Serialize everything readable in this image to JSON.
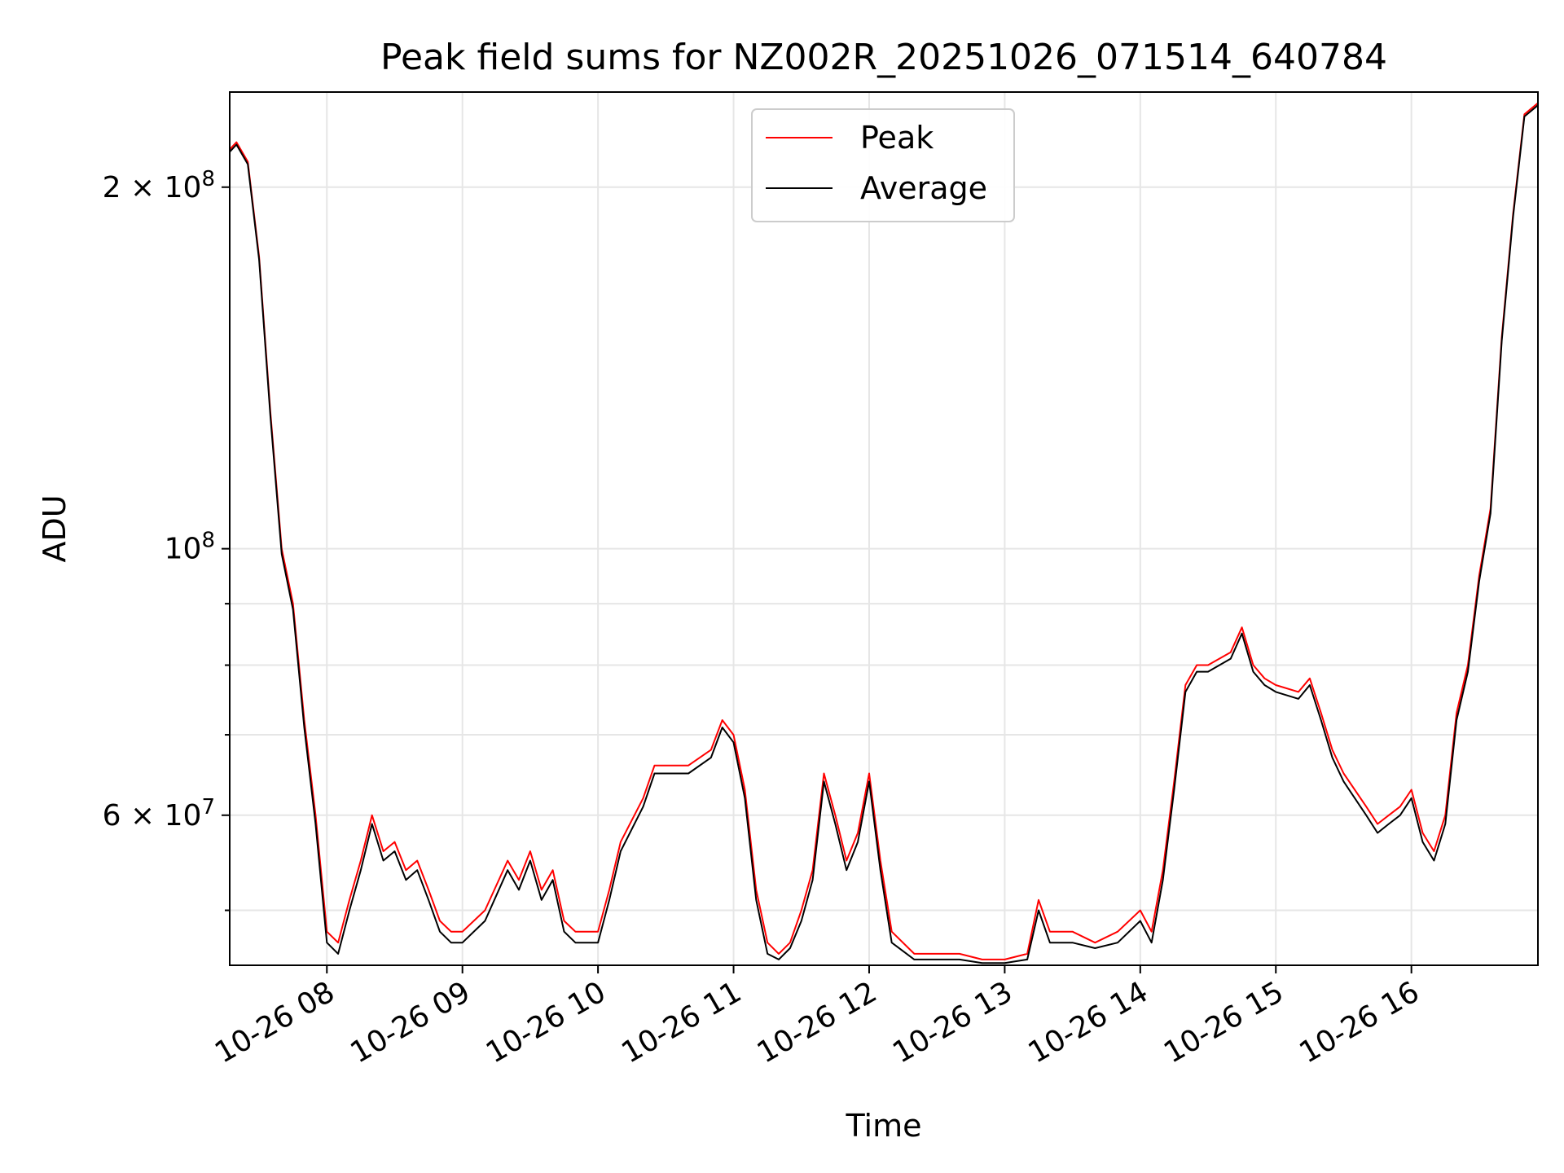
{
  "chart_data": {
    "type": "line",
    "title": "Peak field sums for NZ002R_20251026_071514_640784",
    "xlabel": "Time",
    "ylabel": "ADU",
    "yscale": "log",
    "grid": true,
    "legend_placement": "top-center",
    "xlim": [
      "2025-10-26 07:17",
      "2025-10-26 16:56"
    ],
    "ylim": [
      45000000,
      240000000
    ],
    "x_ticks": [
      {
        "value": "2025-10-26 08:00",
        "label": "10-26 08"
      },
      {
        "value": "2025-10-26 09:00",
        "label": "10-26 09"
      },
      {
        "value": "2025-10-26 10:00",
        "label": "10-26 10"
      },
      {
        "value": "2025-10-26 11:00",
        "label": "10-26 11"
      },
      {
        "value": "2025-10-26 12:00",
        "label": "10-26 12"
      },
      {
        "value": "2025-10-26 13:00",
        "label": "10-26 13"
      },
      {
        "value": "2025-10-26 14:00",
        "label": "10-26 14"
      },
      {
        "value": "2025-10-26 15:00",
        "label": "10-26 15"
      },
      {
        "value": "2025-10-26 16:00",
        "label": "10-26 16"
      }
    ],
    "y_major_ticks": [
      {
        "value": 60000000,
        "mantissa": "6",
        "base": "10",
        "exp": "7"
      },
      {
        "value": 100000000,
        "mantissa": "",
        "base": "10",
        "exp": "8"
      },
      {
        "value": 200000000,
        "mantissa": "2",
        "base": "10",
        "exp": "8"
      }
    ],
    "y_minor_ticks": [
      50000000,
      70000000,
      80000000,
      90000000,
      300000000
    ],
    "series": [
      {
        "name": "Peak",
        "color": "#ff0000",
        "x": [
          "2025-10-26 07:17",
          "2025-10-26 07:20",
          "2025-10-26 07:25",
          "2025-10-26 07:30",
          "2025-10-26 07:35",
          "2025-10-26 07:40",
          "2025-10-26 07:45",
          "2025-10-26 07:50",
          "2025-10-26 07:55",
          "2025-10-26 08:00",
          "2025-10-26 08:05",
          "2025-10-26 08:10",
          "2025-10-26 08:15",
          "2025-10-26 08:20",
          "2025-10-26 08:25",
          "2025-10-26 08:30",
          "2025-10-26 08:35",
          "2025-10-26 08:40",
          "2025-10-26 08:45",
          "2025-10-26 08:50",
          "2025-10-26 08:55",
          "2025-10-26 09:00",
          "2025-10-26 09:10",
          "2025-10-26 09:20",
          "2025-10-26 09:25",
          "2025-10-26 09:30",
          "2025-10-26 09:35",
          "2025-10-26 09:40",
          "2025-10-26 09:45",
          "2025-10-26 09:50",
          "2025-10-26 10:00",
          "2025-10-26 10:05",
          "2025-10-26 10:10",
          "2025-10-26 10:20",
          "2025-10-26 10:25",
          "2025-10-26 10:30",
          "2025-10-26 10:40",
          "2025-10-26 10:50",
          "2025-10-26 10:55",
          "2025-10-26 11:00",
          "2025-10-26 11:05",
          "2025-10-26 11:10",
          "2025-10-26 11:15",
          "2025-10-26 11:20",
          "2025-10-26 11:25",
          "2025-10-26 11:30",
          "2025-10-26 11:35",
          "2025-10-26 11:40",
          "2025-10-26 11:45",
          "2025-10-26 11:50",
          "2025-10-26 11:55",
          "2025-10-26 12:00",
          "2025-10-26 12:05",
          "2025-10-26 12:10",
          "2025-10-26 12:20",
          "2025-10-26 12:30",
          "2025-10-26 12:40",
          "2025-10-26 12:50",
          "2025-10-26 13:00",
          "2025-10-26 13:10",
          "2025-10-26 13:15",
          "2025-10-26 13:20",
          "2025-10-26 13:25",
          "2025-10-26 13:30",
          "2025-10-26 13:40",
          "2025-10-26 13:50",
          "2025-10-26 14:00",
          "2025-10-26 14:05",
          "2025-10-26 14:10",
          "2025-10-26 14:15",
          "2025-10-26 14:20",
          "2025-10-26 14:25",
          "2025-10-26 14:30",
          "2025-10-26 14:40",
          "2025-10-26 14:45",
          "2025-10-26 14:50",
          "2025-10-26 14:55",
          "2025-10-26 15:00",
          "2025-10-26 15:10",
          "2025-10-26 15:15",
          "2025-10-26 15:20",
          "2025-10-26 15:25",
          "2025-10-26 15:30",
          "2025-10-26 15:40",
          "2025-10-26 15:45",
          "2025-10-26 15:50",
          "2025-10-26 15:55",
          "2025-10-26 16:00",
          "2025-10-26 16:05",
          "2025-10-26 16:10",
          "2025-10-26 16:15",
          "2025-10-26 16:20",
          "2025-10-26 16:25",
          "2025-10-26 16:30",
          "2025-10-26 16:35",
          "2025-10-26 16:40",
          "2025-10-26 16:45",
          "2025-10-26 16:50",
          "2025-10-26 16:56"
        ],
        "y": [
          215000000,
          218000000,
          210000000,
          175000000,
          130000000,
          100000000,
          90000000,
          72000000,
          60000000,
          48000000,
          47000000,
          51000000,
          55000000,
          60000000,
          56000000,
          57000000,
          54000000,
          55000000,
          52000000,
          49000000,
          48000000,
          48000000,
          50000000,
          55000000,
          53000000,
          56000000,
          52000000,
          54000000,
          49000000,
          48000000,
          48000000,
          52000000,
          57000000,
          62000000,
          66000000,
          66000000,
          66000000,
          68000000,
          72000000,
          70000000,
          63000000,
          52000000,
          47000000,
          46000000,
          47000000,
          50000000,
          54000000,
          65000000,
          60000000,
          55000000,
          58000000,
          65000000,
          55000000,
          48000000,
          46000000,
          46000000,
          46000000,
          45500000,
          45500000,
          46000000,
          51000000,
          48000000,
          48000000,
          48000000,
          47000000,
          48000000,
          50000000,
          48000000,
          54000000,
          64000000,
          77000000,
          80000000,
          80000000,
          82000000,
          86000000,
          80000000,
          78000000,
          77000000,
          76000000,
          78000000,
          73000000,
          68000000,
          65000000,
          61000000,
          59000000,
          60000000,
          61000000,
          63000000,
          58000000,
          56000000,
          60000000,
          73000000,
          80000000,
          95000000,
          108000000,
          150000000,
          190000000,
          230000000,
          235000000
        ]
      },
      {
        "name": "Average",
        "color": "#000000",
        "x": [
          "2025-10-26 07:17",
          "2025-10-26 07:20",
          "2025-10-26 07:25",
          "2025-10-26 07:30",
          "2025-10-26 07:35",
          "2025-10-26 07:40",
          "2025-10-26 07:45",
          "2025-10-26 07:50",
          "2025-10-26 07:55",
          "2025-10-26 08:00",
          "2025-10-26 08:05",
          "2025-10-26 08:10",
          "2025-10-26 08:15",
          "2025-10-26 08:20",
          "2025-10-26 08:25",
          "2025-10-26 08:30",
          "2025-10-26 08:35",
          "2025-10-26 08:40",
          "2025-10-26 08:45",
          "2025-10-26 08:50",
          "2025-10-26 08:55",
          "2025-10-26 09:00",
          "2025-10-26 09:10",
          "2025-10-26 09:20",
          "2025-10-26 09:25",
          "2025-10-26 09:30",
          "2025-10-26 09:35",
          "2025-10-26 09:40",
          "2025-10-26 09:45",
          "2025-10-26 09:50",
          "2025-10-26 10:00",
          "2025-10-26 10:05",
          "2025-10-26 10:10",
          "2025-10-26 10:20",
          "2025-10-26 10:25",
          "2025-10-26 10:30",
          "2025-10-26 10:40",
          "2025-10-26 10:50",
          "2025-10-26 10:55",
          "2025-10-26 11:00",
          "2025-10-26 11:05",
          "2025-10-26 11:10",
          "2025-10-26 11:15",
          "2025-10-26 11:20",
          "2025-10-26 11:25",
          "2025-10-26 11:30",
          "2025-10-26 11:35",
          "2025-10-26 11:40",
          "2025-10-26 11:45",
          "2025-10-26 11:50",
          "2025-10-26 11:55",
          "2025-10-26 12:00",
          "2025-10-26 12:05",
          "2025-10-26 12:10",
          "2025-10-26 12:20",
          "2025-10-26 12:30",
          "2025-10-26 12:40",
          "2025-10-26 12:50",
          "2025-10-26 13:00",
          "2025-10-26 13:10",
          "2025-10-26 13:15",
          "2025-10-26 13:20",
          "2025-10-26 13:25",
          "2025-10-26 13:30",
          "2025-10-26 13:40",
          "2025-10-26 13:50",
          "2025-10-26 14:00",
          "2025-10-26 14:05",
          "2025-10-26 14:10",
          "2025-10-26 14:15",
          "2025-10-26 14:20",
          "2025-10-26 14:25",
          "2025-10-26 14:30",
          "2025-10-26 14:40",
          "2025-10-26 14:45",
          "2025-10-26 14:50",
          "2025-10-26 14:55",
          "2025-10-26 15:00",
          "2025-10-26 15:10",
          "2025-10-26 15:15",
          "2025-10-26 15:20",
          "2025-10-26 15:25",
          "2025-10-26 15:30",
          "2025-10-26 15:40",
          "2025-10-26 15:45",
          "2025-10-26 15:50",
          "2025-10-26 15:55",
          "2025-10-26 16:00",
          "2025-10-26 16:05",
          "2025-10-26 16:10",
          "2025-10-26 16:15",
          "2025-10-26 16:20",
          "2025-10-26 16:25",
          "2025-10-26 16:30",
          "2025-10-26 16:35",
          "2025-10-26 16:40",
          "2025-10-26 16:45",
          "2025-10-26 16:50",
          "2025-10-26 16:56"
        ],
        "y": [
          214000000,
          217000000,
          209000000,
          174000000,
          129000000,
          99000000,
          89000000,
          71000000,
          59000000,
          47000000,
          46000000,
          50000000,
          54000000,
          59000000,
          55000000,
          56000000,
          53000000,
          54000000,
          51000000,
          48000000,
          47000000,
          47000000,
          49000000,
          54000000,
          52000000,
          55000000,
          51000000,
          53000000,
          48000000,
          47000000,
          47000000,
          51000000,
          56000000,
          61000000,
          65000000,
          65000000,
          65000000,
          67000000,
          71000000,
          69000000,
          62000000,
          51000000,
          46000000,
          45500000,
          46500000,
          49000000,
          53000000,
          64000000,
          59000000,
          54000000,
          57000000,
          64000000,
          54000000,
          47000000,
          45500000,
          45500000,
          45500000,
          45200000,
          45200000,
          45500000,
          50000000,
          47000000,
          47000000,
          47000000,
          46500000,
          47000000,
          49000000,
          47000000,
          53000000,
          63000000,
          76000000,
          79000000,
          79000000,
          81000000,
          85000000,
          79000000,
          77000000,
          76000000,
          75000000,
          77000000,
          72000000,
          67000000,
          64000000,
          60000000,
          58000000,
          59000000,
          60000000,
          62000000,
          57000000,
          55000000,
          59000000,
          72000000,
          79000000,
          94000000,
          107000000,
          149000000,
          189000000,
          229000000,
          234000000
        ]
      }
    ]
  }
}
